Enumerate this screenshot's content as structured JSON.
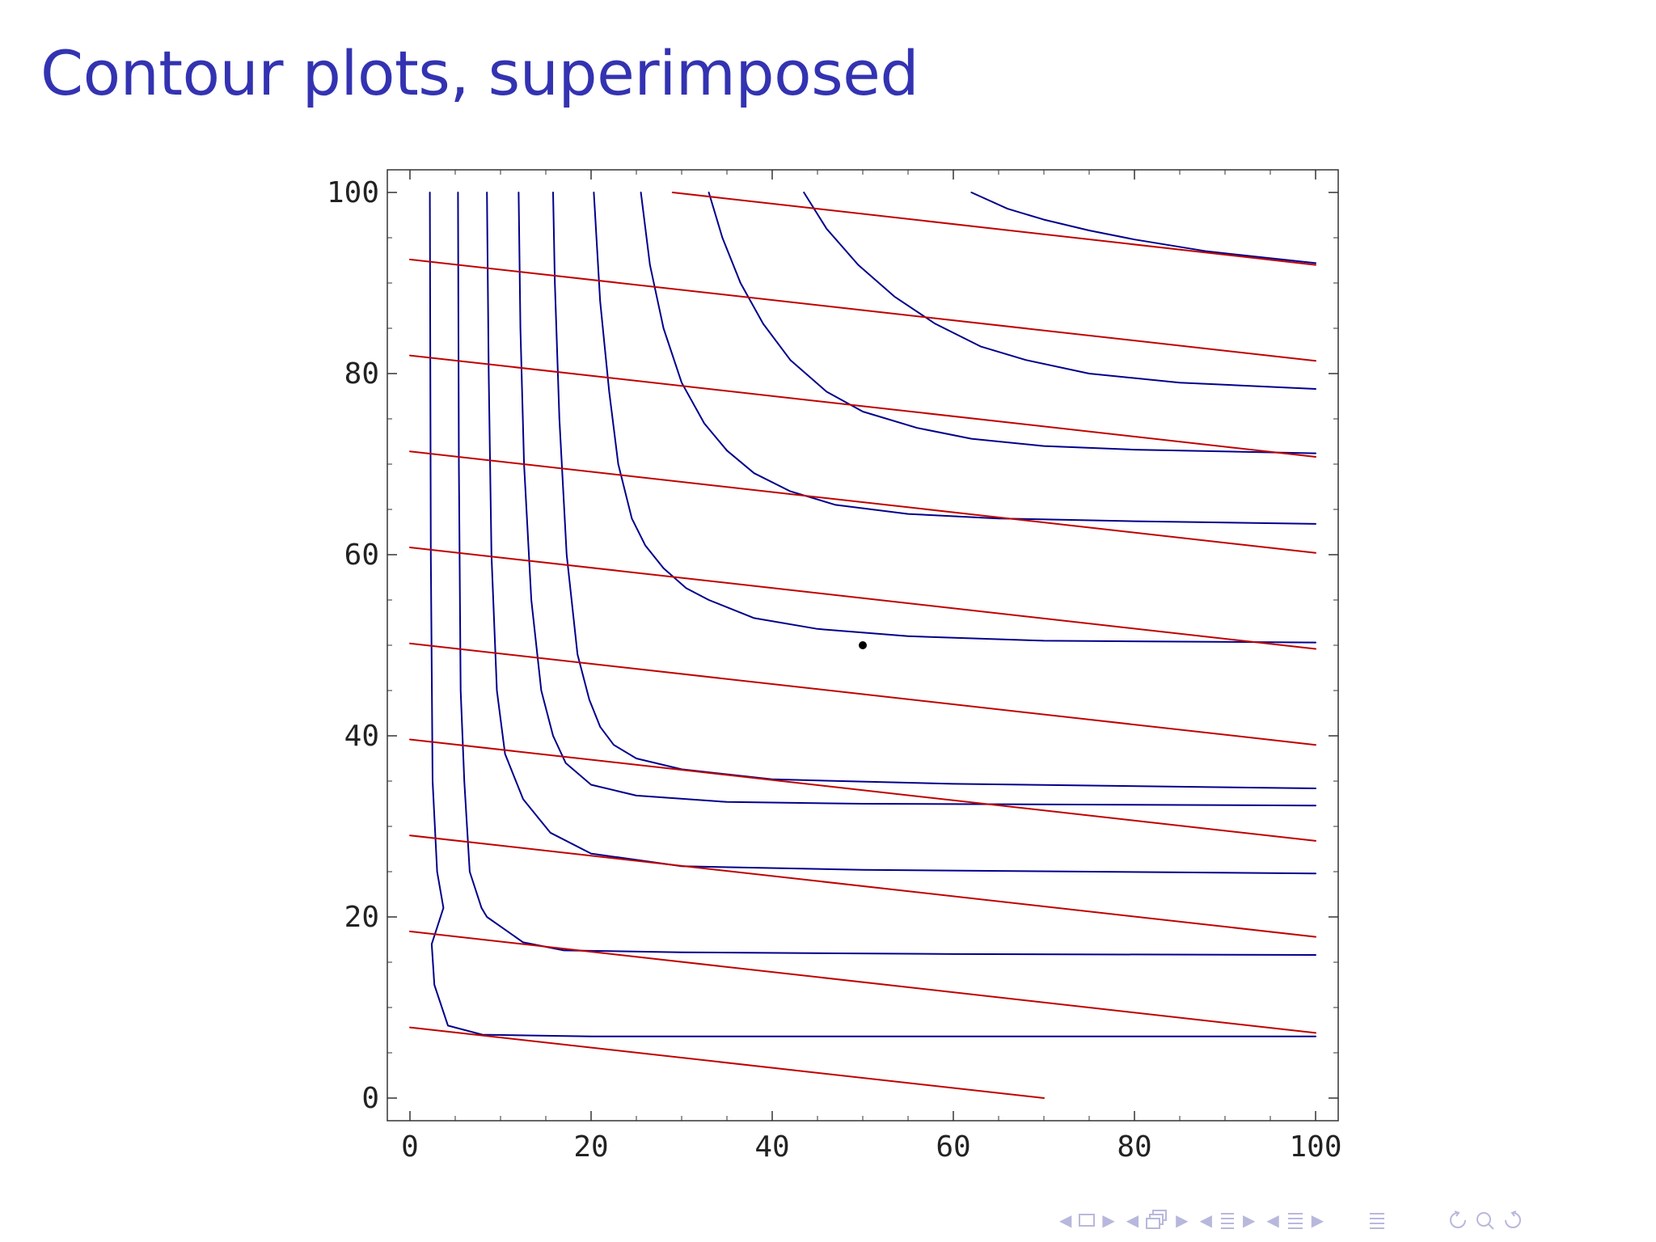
{
  "slide": {
    "title": "Contour plots, superimposed"
  },
  "chart_data": {
    "type": "contour",
    "xlim": [
      0,
      100
    ],
    "ylim": [
      0,
      100
    ],
    "xticks": [
      "0",
      "20",
      "40",
      "60",
      "80",
      "100"
    ],
    "yticks": [
      "0",
      "20",
      "40",
      "60",
      "80",
      "100"
    ],
    "xtick_values": [
      0,
      20,
      40,
      60,
      80,
      100
    ],
    "ytick_values": [
      0,
      20,
      40,
      60,
      80,
      100
    ],
    "grid": false,
    "marker_point": [
      50,
      50
    ],
    "series": [
      {
        "color": "#00008b",
        "lines": [
          [
            [
              2.2,
              100
            ],
            [
              2.3,
              60
            ],
            [
              2.5,
              35
            ],
            [
              3.0,
              25
            ],
            [
              3.7,
              21
            ],
            [
              2.4,
              17
            ],
            [
              2.7,
              12.5
            ],
            [
              4.2,
              8
            ],
            [
              8,
              7
            ],
            [
              20,
              6.8
            ],
            [
              50,
              6.8
            ],
            [
              100,
              6.8
            ]
          ],
          [
            [
              5.3,
              100
            ],
            [
              5.4,
              70
            ],
            [
              5.6,
              45
            ],
            [
              6.0,
              35
            ],
            [
              6.6,
              25
            ],
            [
              7.9,
              21
            ],
            [
              8.5,
              20
            ],
            [
              12.5,
              17.2
            ],
            [
              17,
              16.3
            ],
            [
              30,
              16.1
            ],
            [
              60,
              15.9
            ],
            [
              100,
              15.8
            ]
          ],
          [
            [
              8.5,
              100
            ],
            [
              8.7,
              80
            ],
            [
              9.0,
              60
            ],
            [
              9.6,
              45
            ],
            [
              10.5,
              38
            ],
            [
              12.5,
              33
            ],
            [
              15.5,
              29.3
            ],
            [
              20,
              27
            ],
            [
              30,
              25.6
            ],
            [
              50,
              25.2
            ],
            [
              100,
              24.8
            ]
          ],
          [
            [
              12,
              100
            ],
            [
              12.2,
              85
            ],
            [
              12.6,
              70
            ],
            [
              13.4,
              55
            ],
            [
              14.5,
              45
            ],
            [
              15.8,
              40
            ],
            [
              17.2,
              37
            ],
            [
              20,
              34.6
            ],
            [
              25,
              33.4
            ],
            [
              35,
              32.7
            ],
            [
              50,
              32.5
            ],
            [
              100,
              32.3
            ]
          ],
          [
            [
              15.8,
              100
            ],
            [
              16,
              90
            ],
            [
              16.5,
              75
            ],
            [
              17.3,
              60
            ],
            [
              18.5,
              49
            ],
            [
              19.8,
              44
            ],
            [
              21,
              41
            ],
            [
              22.5,
              39
            ],
            [
              25,
              37.5
            ],
            [
              30,
              36.3
            ],
            [
              40,
              35.2
            ],
            [
              60,
              34.7
            ],
            [
              100,
              34.2
            ]
          ],
          [
            [
              20.3,
              100
            ],
            [
              21,
              88
            ],
            [
              22,
              78
            ],
            [
              23,
              70
            ],
            [
              24.5,
              64
            ],
            [
              26,
              61
            ],
            [
              28,
              58.5
            ],
            [
              30.5,
              56.3
            ],
            [
              33,
              55
            ],
            [
              38,
              53
            ],
            [
              45,
              51.8
            ],
            [
              55,
              51
            ],
            [
              70,
              50.5
            ],
            [
              100,
              50.3
            ]
          ],
          [
            [
              25.5,
              100
            ],
            [
              26.5,
              92
            ],
            [
              28,
              85
            ],
            [
              30,
              79
            ],
            [
              32.5,
              74.5
            ],
            [
              35,
              71.5
            ],
            [
              38,
              69
            ],
            [
              42,
              67
            ],
            [
              47,
              65.5
            ],
            [
              55,
              64.5
            ],
            [
              65,
              64
            ],
            [
              80,
              63.7
            ],
            [
              100,
              63.4
            ]
          ],
          [
            [
              33,
              100
            ],
            [
              34.5,
              95
            ],
            [
              36.5,
              90
            ],
            [
              39,
              85.5
            ],
            [
              42,
              81.5
            ],
            [
              46,
              78
            ],
            [
              50,
              75.8
            ],
            [
              56,
              74
            ],
            [
              62,
              72.8
            ],
            [
              70,
              72
            ],
            [
              80,
              71.6
            ],
            [
              100,
              71.2
            ]
          ],
          [
            [
              43.5,
              100
            ],
            [
              46,
              96
            ],
            [
              49.5,
              92
            ],
            [
              53.5,
              88.5
            ],
            [
              58,
              85.5
            ],
            [
              63,
              83
            ],
            [
              68,
              81.5
            ],
            [
              75,
              80
            ],
            [
              85,
              79
            ],
            [
              100,
              78.3
            ]
          ],
          [
            [
              62,
              100
            ],
            [
              66,
              98.2
            ],
            [
              70,
              97
            ],
            [
              75,
              95.8
            ],
            [
              80,
              94.8
            ],
            [
              88,
              93.5
            ],
            [
              100,
              92.2
            ]
          ]
        ]
      },
      {
        "color": "#c00000",
        "lines": [
          [
            [
              0,
              7.8
            ],
            [
              70,
              0
            ]
          ],
          [
            [
              0,
              18.4
            ],
            [
              100,
              7.2
            ]
          ],
          [
            [
              0,
              29
            ],
            [
              100,
              17.8
            ]
          ],
          [
            [
              0,
              39.6
            ],
            [
              100,
              28.4
            ]
          ],
          [
            [
              0,
              50.2
            ],
            [
              100,
              39
            ]
          ],
          [
            [
              0,
              60.8
            ],
            [
              100,
              49.6
            ]
          ],
          [
            [
              0,
              71.4
            ],
            [
              100,
              60.2
            ]
          ],
          [
            [
              0,
              82
            ],
            [
              100,
              70.8
            ]
          ],
          [
            [
              0,
              92.6
            ],
            [
              100,
              81.4
            ]
          ],
          [
            [
              29,
              100
            ],
            [
              100,
              92
            ]
          ]
        ]
      }
    ]
  },
  "nav": {
    "icons": [
      "frame-nav-icon",
      "subsection-nav-icon",
      "section-nav-icon",
      "slide-nav-icon",
      "toc-icon",
      "search-icon"
    ]
  }
}
